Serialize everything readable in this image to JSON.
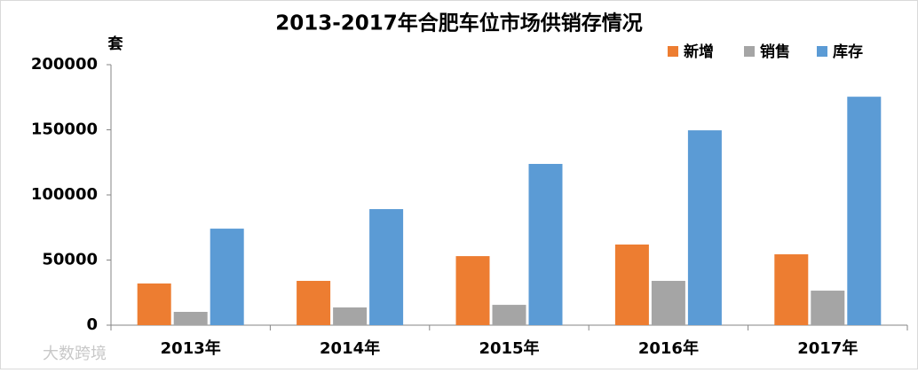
{
  "chart_data": {
    "type": "bar",
    "title": "2013-2017年合肥车位市场供销存情况",
    "y_label": "套",
    "categories": [
      "2013年",
      "2014年",
      "2015年",
      "2016年",
      "2017年"
    ],
    "series": [
      {
        "name": "新增",
        "color": "#ed7d31",
        "values": [
          32000,
          34000,
          53000,
          61900,
          54400
        ]
      },
      {
        "name": "销售",
        "color": "#a5a5a5",
        "values": [
          10200,
          13600,
          15600,
          34000,
          26500
        ]
      },
      {
        "name": "库存",
        "color": "#5b9bd5",
        "values": [
          74100,
          89100,
          123800,
          149600,
          175400
        ]
      }
    ],
    "ylim": [
      0,
      200000
    ],
    "yticks": [
      0,
      50000,
      100000,
      150000,
      200000
    ],
    "grid": false,
    "legend": "top-right",
    "watermark": "大数跨境"
  }
}
